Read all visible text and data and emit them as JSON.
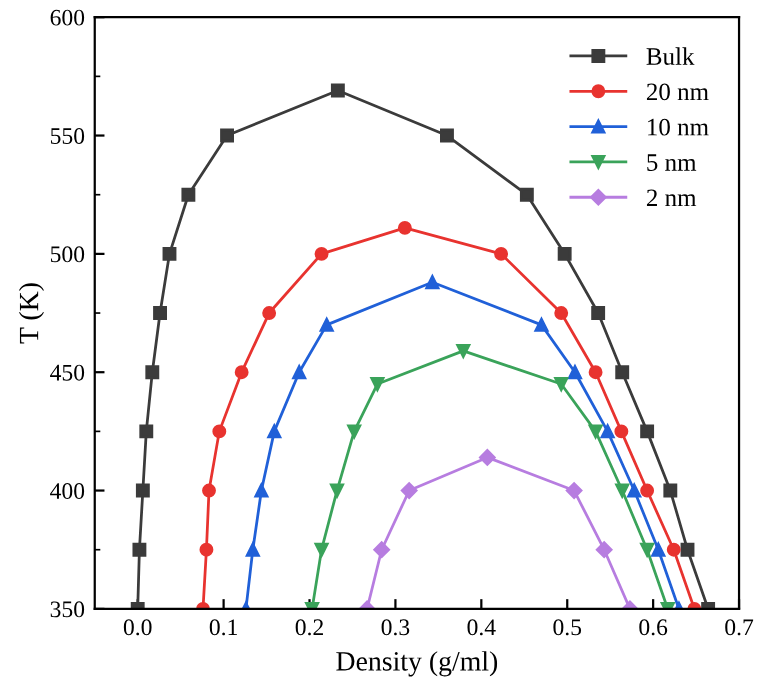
{
  "chart_data": {
    "type": "line",
    "xlabel": "Density (g/ml)",
    "ylabel": "T (K)",
    "xlim": [
      -0.05,
      0.7
    ],
    "ylim": [
      350,
      600
    ],
    "xticks": [
      {
        "value": 0,
        "label": "0.0"
      },
      0.1,
      0.2,
      0.3,
      0.4,
      0.5,
      0.6,
      0.7
    ],
    "yticks": [
      350,
      400,
      450,
      500,
      550,
      600
    ],
    "legend": "top right",
    "grid": false,
    "line_style": "solid",
    "series": [
      {
        "name": "Bulk",
        "color": "#3b3b3b",
        "marker": "square",
        "x": [
          0.0,
          0.002,
          0.006,
          0.01,
          0.017,
          0.026,
          0.037,
          0.059,
          0.104,
          0.233,
          0.36,
          0.453,
          0.497,
          0.536,
          0.564,
          0.593,
          0.62,
          0.64,
          0.664
        ],
        "values": [
          350,
          375,
          400,
          425,
          450,
          475,
          500,
          525,
          550,
          569,
          550,
          525,
          500,
          475,
          450,
          425,
          400,
          375,
          350
        ]
      },
      {
        "name": "20 nm",
        "color": "#e8332f",
        "marker": "circle",
        "x": [
          0.076,
          0.08,
          0.083,
          0.095,
          0.121,
          0.153,
          0.214,
          0.311,
          0.423,
          0.493,
          0.533,
          0.563,
          0.593,
          0.624,
          0.648
        ],
        "values": [
          350,
          375,
          400,
          425,
          450,
          475,
          500,
          511,
          500,
          475,
          450,
          425,
          400,
          375,
          350
        ]
      },
      {
        "name": "10 nm",
        "color": "#2060d8",
        "marker": "triangle",
        "x": [
          0.126,
          0.134,
          0.144,
          0.159,
          0.188,
          0.22,
          0.343,
          0.47,
          0.509,
          0.547,
          0.578,
          0.606,
          0.63
        ],
        "values": [
          350,
          375,
          400,
          425,
          450,
          470,
          488,
          470,
          450,
          425,
          400,
          375,
          350
        ]
      },
      {
        "name": "5 nm",
        "color": "#3aa35a",
        "marker": "triangle_down",
        "x": [
          0.203,
          0.214,
          0.232,
          0.252,
          0.279,
          0.379,
          0.493,
          0.533,
          0.564,
          0.593,
          0.617
        ],
        "values": [
          350,
          375,
          400,
          425,
          445,
          459,
          445,
          425,
          400,
          375,
          350
        ]
      },
      {
        "name": "2 nm",
        "color": "#b77de0",
        "marker": "diamond",
        "x": [
          0.267,
          0.284,
          0.316,
          0.407,
          0.508,
          0.543,
          0.573
        ],
        "values": [
          350,
          375,
          400,
          414,
          400,
          375,
          350
        ]
      }
    ]
  }
}
